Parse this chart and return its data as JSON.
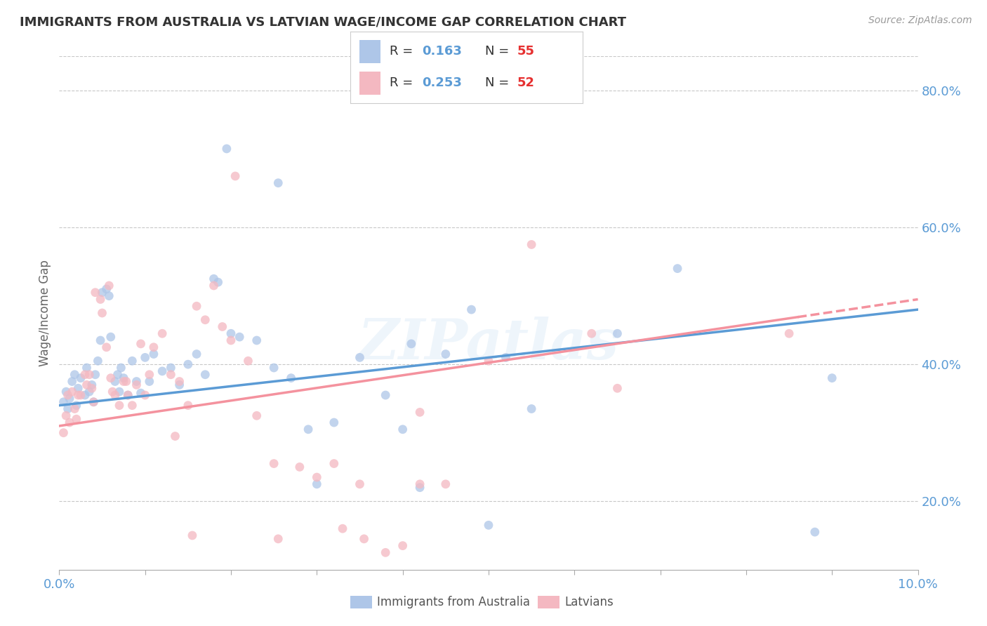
{
  "title": "IMMIGRANTS FROM AUSTRALIA VS LATVIAN WAGE/INCOME GAP CORRELATION CHART",
  "source": "Source: ZipAtlas.com",
  "ylabel": "Wage/Income Gap",
  "xlim": [
    0.0,
    10.0
  ],
  "ylim": [
    10.0,
    85.0
  ],
  "y_ticks": [
    20.0,
    40.0,
    60.0,
    80.0
  ],
  "background_color": "#ffffff",
  "grid_color": "#c8c8c8",
  "title_color": "#333333",
  "source_color": "#999999",
  "axis_label_color": "#5b9bd5",
  "australia_color": "#aec6e8",
  "latvian_color": "#f4b8c1",
  "australia_line_color": "#5b9bd5",
  "latvian_line_color": "#f4929e",
  "australia_R": "0.163",
  "australia_N": "55",
  "latvian_R": "0.253",
  "latvian_N": "52",
  "watermark": "ZIPatlas",
  "aus_trend": [
    0.0,
    34.0,
    10.0,
    48.0
  ],
  "lat_trend_solid_end": 8.6,
  "lat_trend": [
    0.0,
    31.0,
    10.0,
    49.5
  ],
  "australia_scatter": [
    [
      0.05,
      34.5
    ],
    [
      0.08,
      36.0
    ],
    [
      0.1,
      33.5
    ],
    [
      0.12,
      35.0
    ],
    [
      0.15,
      37.5
    ],
    [
      0.18,
      38.5
    ],
    [
      0.2,
      34.0
    ],
    [
      0.22,
      36.5
    ],
    [
      0.25,
      38.0
    ],
    [
      0.3,
      35.5
    ],
    [
      0.32,
      39.5
    ],
    [
      0.35,
      36.0
    ],
    [
      0.38,
      37.0
    ],
    [
      0.4,
      34.5
    ],
    [
      0.42,
      38.5
    ],
    [
      0.45,
      40.5
    ],
    [
      0.48,
      43.5
    ],
    [
      0.5,
      50.5
    ],
    [
      0.55,
      51.0
    ],
    [
      0.58,
      50.0
    ],
    [
      0.6,
      44.0
    ],
    [
      0.65,
      37.5
    ],
    [
      0.68,
      38.5
    ],
    [
      0.7,
      36.0
    ],
    [
      0.72,
      39.5
    ],
    [
      0.75,
      38.0
    ],
    [
      0.8,
      35.5
    ],
    [
      0.85,
      40.5
    ],
    [
      0.9,
      37.5
    ],
    [
      0.95,
      35.8
    ],
    [
      1.0,
      41.0
    ],
    [
      1.05,
      37.5
    ],
    [
      1.1,
      41.5
    ],
    [
      1.2,
      39.0
    ],
    [
      1.3,
      39.5
    ],
    [
      1.4,
      37.0
    ],
    [
      1.5,
      40.0
    ],
    [
      1.6,
      41.5
    ],
    [
      1.7,
      38.5
    ],
    [
      1.8,
      52.5
    ],
    [
      1.85,
      52.0
    ],
    [
      1.95,
      71.5
    ],
    [
      2.0,
      44.5
    ],
    [
      2.1,
      44.0
    ],
    [
      2.3,
      43.5
    ],
    [
      2.5,
      39.5
    ],
    [
      2.55,
      66.5
    ],
    [
      2.7,
      38.0
    ],
    [
      2.9,
      30.5
    ],
    [
      3.0,
      22.5
    ],
    [
      3.2,
      31.5
    ],
    [
      3.5,
      41.0
    ],
    [
      3.8,
      35.5
    ],
    [
      4.0,
      30.5
    ],
    [
      4.2,
      22.0
    ],
    [
      4.5,
      41.5
    ],
    [
      5.0,
      16.5
    ],
    [
      5.5,
      33.5
    ],
    [
      6.5,
      44.5
    ],
    [
      7.2,
      54.0
    ],
    [
      8.8,
      15.5
    ],
    [
      9.0,
      38.0
    ],
    [
      4.8,
      48.0
    ],
    [
      4.1,
      43.0
    ],
    [
      5.2,
      41.0
    ]
  ],
  "latvian_scatter": [
    [
      0.05,
      30.0
    ],
    [
      0.08,
      32.5
    ],
    [
      0.1,
      35.5
    ],
    [
      0.12,
      31.5
    ],
    [
      0.15,
      36.0
    ],
    [
      0.18,
      33.5
    ],
    [
      0.2,
      32.0
    ],
    [
      0.22,
      35.5
    ],
    [
      0.25,
      35.5
    ],
    [
      0.3,
      38.5
    ],
    [
      0.32,
      37.0
    ],
    [
      0.35,
      38.5
    ],
    [
      0.38,
      36.5
    ],
    [
      0.4,
      34.5
    ],
    [
      0.42,
      50.5
    ],
    [
      0.48,
      49.5
    ],
    [
      0.5,
      47.5
    ],
    [
      0.55,
      42.5
    ],
    [
      0.58,
      51.5
    ],
    [
      0.6,
      38.0
    ],
    [
      0.62,
      36.0
    ],
    [
      0.65,
      35.5
    ],
    [
      0.7,
      34.0
    ],
    [
      0.75,
      37.5
    ],
    [
      0.78,
      37.5
    ],
    [
      0.8,
      35.5
    ],
    [
      0.85,
      34.0
    ],
    [
      0.9,
      37.0
    ],
    [
      0.95,
      43.0
    ],
    [
      1.0,
      35.5
    ],
    [
      1.05,
      38.5
    ],
    [
      1.1,
      42.5
    ],
    [
      1.2,
      44.5
    ],
    [
      1.3,
      38.5
    ],
    [
      1.35,
      29.5
    ],
    [
      1.4,
      37.5
    ],
    [
      1.5,
      34.0
    ],
    [
      1.6,
      48.5
    ],
    [
      1.7,
      46.5
    ],
    [
      1.8,
      51.5
    ],
    [
      1.9,
      45.5
    ],
    [
      2.0,
      43.5
    ],
    [
      2.05,
      67.5
    ],
    [
      2.2,
      40.5
    ],
    [
      2.3,
      32.5
    ],
    [
      2.5,
      25.5
    ],
    [
      2.55,
      14.5
    ],
    [
      2.8,
      25.0
    ],
    [
      3.0,
      23.5
    ],
    [
      3.2,
      25.5
    ],
    [
      3.5,
      22.5
    ],
    [
      3.55,
      14.5
    ],
    [
      3.8,
      12.5
    ],
    [
      4.0,
      13.5
    ],
    [
      4.2,
      22.5
    ],
    [
      4.2,
      33.0
    ],
    [
      4.5,
      22.5
    ],
    [
      5.0,
      40.5
    ],
    [
      5.5,
      57.5
    ],
    [
      6.2,
      44.5
    ],
    [
      6.5,
      36.5
    ],
    [
      8.5,
      44.5
    ],
    [
      1.55,
      15.0
    ],
    [
      3.3,
      16.0
    ]
  ]
}
